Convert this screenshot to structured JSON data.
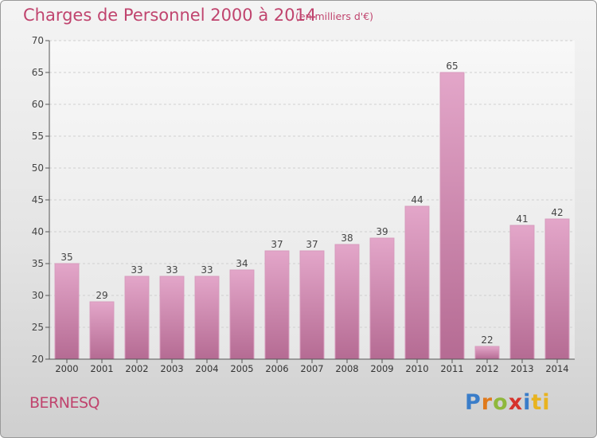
{
  "header": {
    "title": "Charges de Personnel 2000 à 2014",
    "subtitle": "(en milliers d'€)"
  },
  "footer": {
    "town": "BERNESQ",
    "logo_letters": [
      "P",
      "r",
      "o",
      "x",
      "i",
      "ti"
    ]
  },
  "colors": {
    "bar_top": "#e3a6c9",
    "bar_bottom": "#b56b93",
    "title": "#c0446e"
  },
  "chart_data": {
    "type": "bar",
    "title": "Charges de Personnel 2000 à 2014",
    "subtitle": "(en milliers d'€)",
    "categories": [
      "2000",
      "2001",
      "2002",
      "2003",
      "2004",
      "2005",
      "2006",
      "2007",
      "2008",
      "2009",
      "2010",
      "2011",
      "2012",
      "2013",
      "2014"
    ],
    "values": [
      35,
      29,
      33,
      33,
      33,
      34,
      37,
      37,
      38,
      39,
      44,
      65,
      22,
      41,
      42
    ],
    "ylim": [
      20,
      70
    ],
    "yticks": [
      20,
      25,
      30,
      35,
      40,
      45,
      50,
      55,
      60,
      65,
      70
    ],
    "grid": true,
    "data_labels": true
  }
}
